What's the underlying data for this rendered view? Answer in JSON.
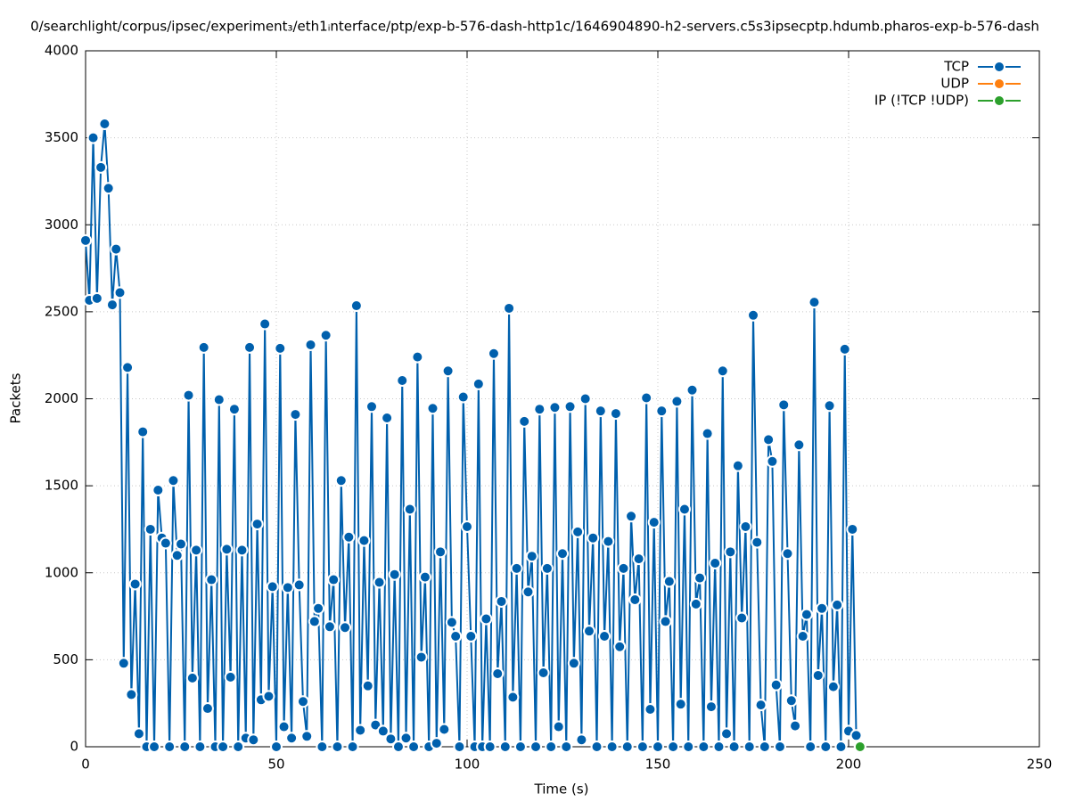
{
  "chart_data": {
    "type": "line",
    "title": "0/searchlight/corpus/ipsec/experiment₃/eth1ᵢnterface/ptp/exp-b-576-dash-http1c/1646904890-h2-servers.c5s3ipsecptp.hdumb.pharos-exp-b-576-dash",
    "xlabel": "Time (s)",
    "ylabel": "Packets",
    "xlim": [
      0,
      250
    ],
    "xticks": [
      0,
      50,
      100,
      150,
      200,
      250
    ],
    "ylim": [
      0,
      4000
    ],
    "yticks": [
      0,
      500,
      1000,
      1500,
      2000,
      2500,
      3000,
      3500,
      4000
    ],
    "grid": true,
    "legend": "upper right",
    "series": [
      {
        "name": "TCP",
        "color": "#0060ad",
        "x": [
          0,
          1,
          2,
          3,
          4,
          5,
          6,
          7,
          8,
          9,
          10,
          11,
          12,
          13,
          14,
          15,
          16,
          17,
          18,
          19,
          20,
          21,
          22,
          23,
          24,
          25,
          26,
          27,
          28,
          29,
          30,
          31,
          32,
          33,
          34,
          35,
          36,
          37,
          38,
          39,
          40,
          41,
          42,
          43,
          44,
          45,
          46,
          47,
          48,
          49,
          50,
          51,
          52,
          53,
          54,
          55,
          56,
          57,
          58,
          59,
          60,
          61,
          62,
          63,
          64,
          65,
          66,
          67,
          68,
          69,
          70,
          71,
          72,
          73,
          74,
          75,
          76,
          77,
          78,
          79,
          80,
          81,
          82,
          83,
          84,
          85,
          86,
          87,
          88,
          89,
          90,
          91,
          92,
          93,
          94,
          95,
          96,
          97,
          98,
          99,
          100,
          101,
          102,
          103,
          104,
          105,
          106,
          107,
          108,
          109,
          110,
          111,
          112,
          113,
          114,
          115,
          116,
          117,
          118,
          119,
          120,
          121,
          122,
          123,
          124,
          125,
          126,
          127,
          128,
          129,
          130,
          131,
          132,
          133,
          134,
          135,
          136,
          137,
          138,
          139,
          140,
          141,
          142,
          143,
          144,
          145,
          146,
          147,
          148,
          149,
          150,
          151,
          152,
          153,
          154,
          155,
          156,
          157,
          158,
          159,
          160,
          161,
          162,
          163,
          164,
          165,
          166,
          167,
          168,
          169,
          170,
          171,
          172,
          173,
          174,
          175,
          176,
          177,
          178,
          179,
          180,
          181,
          182,
          183,
          184,
          185,
          186,
          187,
          188,
          189,
          190,
          191,
          192,
          193,
          194,
          195,
          196,
          197,
          198,
          199,
          200,
          201,
          202
        ],
        "values": [
          2910,
          2566,
          3500,
          2577,
          3330,
          3580,
          3210,
          2540,
          2860,
          2610,
          480,
          2180,
          300,
          935,
          75,
          1810,
          0,
          1250,
          0,
          1475,
          1200,
          1170,
          0,
          1530,
          1100,
          1165,
          0,
          2020,
          395,
          1130,
          0,
          2295,
          220,
          960,
          0,
          1995,
          0,
          1135,
          400,
          1940,
          0,
          1130,
          50,
          2295,
          40,
          1280,
          270,
          2430,
          290,
          920,
          0,
          2290,
          115,
          915,
          50,
          1910,
          930,
          260,
          60,
          2310,
          720,
          795,
          0,
          2365,
          690,
          960,
          0,
          1530,
          685,
          1205,
          0,
          2535,
          95,
          1185,
          350,
          1955,
          125,
          945,
          90,
          1890,
          45,
          990,
          0,
          2105,
          50,
          1365,
          0,
          2240,
          515,
          975,
          0,
          1945,
          20,
          1120,
          100,
          2160,
          715,
          635,
          0,
          2010,
          1265,
          635,
          0,
          2085,
          0,
          735,
          0,
          2260,
          420,
          835,
          0,
          2520,
          285,
          1025,
          0,
          1870,
          890,
          1095,
          0,
          1940,
          425,
          1025,
          0,
          1950,
          115,
          1110,
          0,
          1955,
          480,
          1235,
          40,
          2000,
          665,
          1200,
          0,
          1930,
          635,
          1180,
          0,
          1915,
          575,
          1025,
          0,
          1325,
          845,
          1080,
          0,
          2005,
          215,
          1290,
          0,
          1930,
          720,
          950,
          0,
          1985,
          245,
          1365,
          0,
          2050,
          820,
          970,
          0,
          1800,
          230,
          1055,
          0,
          2160,
          75,
          1120,
          0,
          1615,
          740,
          1265,
          0,
          2480,
          1175,
          240,
          0,
          1765,
          1640,
          355,
          0,
          1965,
          1110,
          265,
          120,
          1735,
          635,
          760,
          0,
          2555,
          410,
          795,
          0,
          1960,
          345,
          815,
          0,
          2285,
          90,
          1250,
          65
        ]
      },
      {
        "name": "UDP",
        "color": "#ff7f0e",
        "x": [
          203
        ],
        "values": [
          0
        ]
      },
      {
        "name": "IP (!TCP  !UDP)",
        "color": "#2ca02c",
        "x": [
          203
        ],
        "values": [
          0
        ]
      }
    ]
  }
}
